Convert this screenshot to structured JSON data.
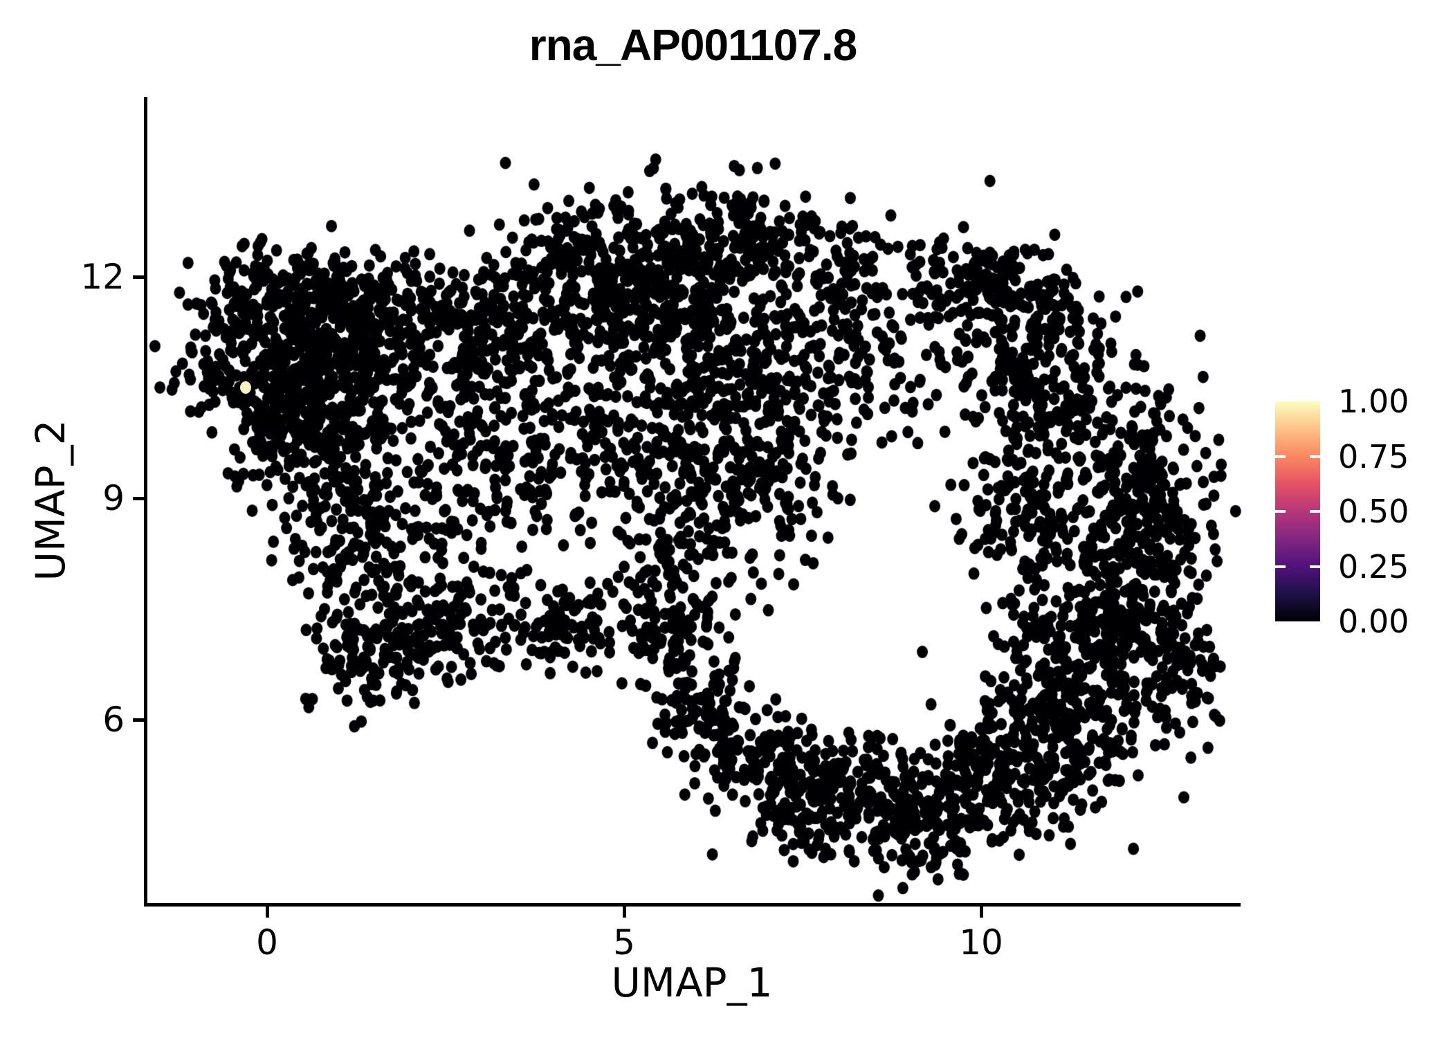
{
  "title": "rna_AP001107.8",
  "x_axis": {
    "label": "UMAP_1",
    "tick_labels": [
      "0",
      "5",
      "10"
    ],
    "tick_values": [
      0,
      5,
      10
    ]
  },
  "y_axis": {
    "label": "UMAP_2",
    "tick_labels": [
      "12",
      "9",
      "6"
    ],
    "tick_values": [
      12,
      9,
      6
    ]
  },
  "colorbar": {
    "tick_labels": [
      "1.00",
      "0.75",
      "0.50",
      "0.25",
      "0.00"
    ],
    "tick_values": [
      1.0,
      0.75,
      0.5,
      0.25,
      0.0
    ],
    "colormap": "magma",
    "gradient_stops": [
      "#000004",
      "#1D1147",
      "#51127C",
      "#822681",
      "#B63679",
      "#E65164",
      "#FB8861",
      "#FEC287",
      "#FCFDBF"
    ]
  },
  "chart_data": {
    "type": "scatter",
    "title": "rna_AP001107.8",
    "xlabel": "UMAP_1",
    "ylabel": "UMAP_2",
    "xlim": [
      -1.7,
      13.6
    ],
    "ylim": [
      3.5,
      14.5
    ],
    "x_ticks": [
      0,
      5,
      10
    ],
    "y_ticks": [
      6,
      9,
      12
    ],
    "grid": false,
    "legend_position": "right",
    "legend": "feature expression 0.00-1.00 (magma colorbar)",
    "background_color": "#FFFFFF",
    "point_color": "#000004",
    "point_value": 0.0,
    "point_radius_px": 8.5,
    "n_points_approx": 5480,
    "seed": 42,
    "highlighted_point": {
      "x": -0.3,
      "y": 10.5,
      "value": 1.0,
      "color": "#F8F4C2"
    },
    "clusters": [
      {
        "n": 270,
        "cx": 0.05,
        "cy": 11.1,
        "sx": 0.75,
        "sy": 0.55
      },
      {
        "n": 210,
        "cx": 0.95,
        "cy": 10.9,
        "sx": 0.6,
        "sy": 0.55
      },
      {
        "n": 150,
        "cx": 0.3,
        "cy": 10.15,
        "sx": 0.55,
        "sy": 0.45
      },
      {
        "n": 110,
        "cx": 1.3,
        "cy": 11.6,
        "sx": 0.65,
        "sy": 0.35
      },
      {
        "n": 60,
        "cx": 0.2,
        "cy": 11.9,
        "sx": 0.5,
        "sy": 0.3
      },
      {
        "n": 120,
        "cx": 0.8,
        "cy": 9.35,
        "sx": 0.5,
        "sy": 0.55
      },
      {
        "n": 100,
        "cx": 1.4,
        "cy": 8.3,
        "sx": 0.45,
        "sy": 0.5
      },
      {
        "n": 140,
        "cx": 1.5,
        "cy": 6.9,
        "sx": 0.5,
        "sy": 0.4
      },
      {
        "n": 55,
        "cx": 2.4,
        "cy": 8.6,
        "sx": 0.55,
        "sy": 0.5
      },
      {
        "n": 60,
        "cx": 2.4,
        "cy": 11.5,
        "sx": 0.55,
        "sy": 0.45
      },
      {
        "n": 70,
        "cx": 2.2,
        "cy": 10.4,
        "sx": 0.55,
        "sy": 0.6
      },
      {
        "n": 290,
        "cx": 4.9,
        "cy": 12.2,
        "sx": 0.75,
        "sy": 0.5
      },
      {
        "n": 170,
        "cx": 5.7,
        "cy": 11.55,
        "sx": 0.6,
        "sy": 0.5
      },
      {
        "n": 140,
        "cx": 3.6,
        "cy": 11.5,
        "sx": 0.6,
        "sy": 0.45
      },
      {
        "n": 80,
        "cx": 2.95,
        "cy": 10.9,
        "sx": 0.5,
        "sy": 0.4
      },
      {
        "n": 210,
        "cx": 5.6,
        "cy": 9.8,
        "sx": 0.85,
        "sy": 0.7
      },
      {
        "n": 150,
        "cx": 6.9,
        "cy": 9.4,
        "sx": 0.65,
        "sy": 0.6
      },
      {
        "n": 110,
        "cx": 4.3,
        "cy": 9.9,
        "sx": 0.75,
        "sy": 0.55
      },
      {
        "n": 85,
        "cx": 3.1,
        "cy": 9.55,
        "sx": 0.55,
        "sy": 0.5
      },
      {
        "n": 95,
        "cx": 7.6,
        "cy": 10.7,
        "sx": 0.55,
        "sy": 0.5
      },
      {
        "n": 65,
        "cx": 6.5,
        "cy": 10.95,
        "sx": 0.5,
        "sy": 0.4
      },
      {
        "n": 75,
        "cx": 5.7,
        "cy": 8.3,
        "sx": 0.55,
        "sy": 0.4
      },
      {
        "n": 125,
        "cx": 6.7,
        "cy": 12.5,
        "sx": 0.45,
        "sy": 0.4
      },
      {
        "n": 75,
        "cx": 7.8,
        "cy": 12.05,
        "sx": 0.55,
        "sy": 0.45
      },
      {
        "n": 110,
        "cx": 9.0,
        "cy": 11.3,
        "sx": 0.7,
        "sy": 0.75
      },
      {
        "n": 65,
        "cx": 9.9,
        "cy": 12.0,
        "sx": 0.4,
        "sy": 0.35
      },
      {
        "n": 210,
        "cx": 11.35,
        "cy": 9.9,
        "sx": 0.6,
        "sy": 0.8
      },
      {
        "n": 150,
        "cx": 12.35,
        "cy": 9.2,
        "sx": 0.5,
        "sy": 0.6
      },
      {
        "n": 210,
        "cx": 12.2,
        "cy": 7.8,
        "sx": 0.55,
        "sy": 0.8
      },
      {
        "n": 210,
        "cx": 11.4,
        "cy": 6.7,
        "sx": 0.6,
        "sy": 0.6
      },
      {
        "n": 190,
        "cx": 10.9,
        "cy": 5.7,
        "sx": 0.6,
        "sy": 0.5
      },
      {
        "n": 140,
        "cx": 10.1,
        "cy": 5.1,
        "sx": 0.55,
        "sy": 0.45
      },
      {
        "n": 120,
        "cx": 10.6,
        "cy": 8.6,
        "sx": 0.5,
        "sy": 0.6
      },
      {
        "n": 85,
        "cx": 10.4,
        "cy": 10.9,
        "sx": 0.45,
        "sy": 0.5
      },
      {
        "n": 85,
        "cx": 10.8,
        "cy": 11.6,
        "sx": 0.4,
        "sy": 0.35
      },
      {
        "n": 75,
        "cx": 12.9,
        "cy": 6.5,
        "sx": 0.35,
        "sy": 0.6
      },
      {
        "n": 95,
        "cx": 4.2,
        "cy": 7.35,
        "sx": 0.45,
        "sy": 0.4
      },
      {
        "n": 90,
        "cx": 5.6,
        "cy": 7.2,
        "sx": 0.4,
        "sy": 0.35
      },
      {
        "n": 80,
        "cx": 6.1,
        "cy": 6.2,
        "sx": 0.4,
        "sy": 0.4
      },
      {
        "n": 80,
        "cx": 6.8,
        "cy": 5.5,
        "sx": 0.4,
        "sy": 0.35
      },
      {
        "n": 120,
        "cx": 7.5,
        "cy": 5.0,
        "sx": 0.5,
        "sy": 0.45
      },
      {
        "n": 150,
        "cx": 8.4,
        "cy": 4.85,
        "sx": 0.55,
        "sy": 0.5
      },
      {
        "n": 110,
        "cx": 9.3,
        "cy": 4.55,
        "sx": 0.5,
        "sy": 0.4
      },
      {
        "n": 90,
        "cx": 2.7,
        "cy": 7.3,
        "sx": 0.4,
        "sy": 0.35
      }
    ]
  }
}
